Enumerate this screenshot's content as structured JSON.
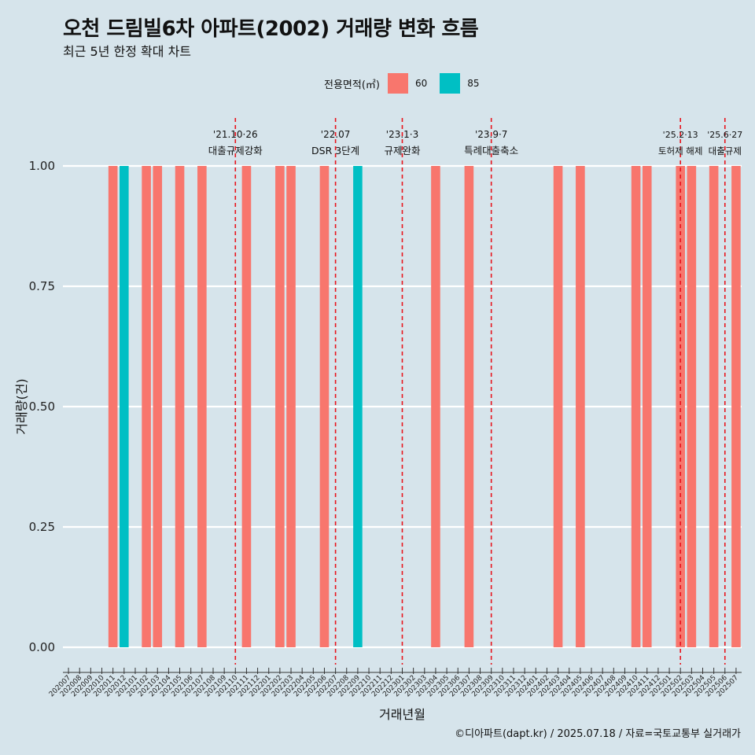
{
  "title": "오천 드림빌6차 아파트(2002) 거래량 변화 흐름",
  "subtitle": "최근 5년 한정 확대 차트",
  "legend": {
    "title": "전용면적(㎡)",
    "items": [
      {
        "label": "60",
        "color": "#f8766d"
      },
      {
        "label": "85",
        "color": "#00bfc4"
      }
    ]
  },
  "caption": "©디아파트(dapt.kr) / 2025.07.18 / 자료=국토교통부 실거래가",
  "chart_data": {
    "type": "bar",
    "xlabel": "거래년월",
    "ylabel": "거래량(건)",
    "ylim": [
      0,
      1
    ],
    "yticks": [
      "0.00",
      "0.25",
      "0.50",
      "0.75",
      "1.00"
    ],
    "categories": [
      "202007",
      "202008",
      "202009",
      "202010",
      "202011",
      "202012",
      "202101",
      "202102",
      "202103",
      "202104",
      "202105",
      "202106",
      "202107",
      "202108",
      "202109",
      "202110",
      "202111",
      "202112",
      "202201",
      "202202",
      "202203",
      "202204",
      "202205",
      "202206",
      "202207",
      "202208",
      "202209",
      "202210",
      "202211",
      "202212",
      "202301",
      "202302",
      "202303",
      "202304",
      "202305",
      "202306",
      "202307",
      "202308",
      "202309",
      "202310",
      "202311",
      "202312",
      "202401",
      "202402",
      "202403",
      "202404",
      "202405",
      "202406",
      "202407",
      "202408",
      "202409",
      "202410",
      "202411",
      "202412",
      "202501",
      "202502",
      "202503",
      "202504",
      "202505",
      "202506",
      "202507"
    ],
    "series": [
      {
        "name": "60",
        "color": "#f8766d",
        "values": [
          {
            "month": "202011",
            "value": 1
          },
          {
            "month": "202102",
            "value": 1
          },
          {
            "month": "202103",
            "value": 1
          },
          {
            "month": "202105",
            "value": 1
          },
          {
            "month": "202107",
            "value": 1
          },
          {
            "month": "202111",
            "value": 1
          },
          {
            "month": "202202",
            "value": 1
          },
          {
            "month": "202203",
            "value": 1
          },
          {
            "month": "202206",
            "value": 1
          },
          {
            "month": "202304",
            "value": 1
          },
          {
            "month": "202307",
            "value": 1
          },
          {
            "month": "202403",
            "value": 1
          },
          {
            "month": "202405",
            "value": 1
          },
          {
            "month": "202410",
            "value": 1
          },
          {
            "month": "202411",
            "value": 1
          },
          {
            "month": "202502",
            "value": 1
          },
          {
            "month": "202503",
            "value": 1
          },
          {
            "month": "202505",
            "value": 1
          },
          {
            "month": "202507",
            "value": 1
          }
        ]
      },
      {
        "name": "85",
        "color": "#00bfc4",
        "values": [
          {
            "month": "202012",
            "value": 1
          },
          {
            "month": "202209",
            "value": 1
          }
        ]
      }
    ],
    "events": [
      {
        "month": "202110",
        "date": "'21.10·26",
        "label": "대출규제강화"
      },
      {
        "month": "202207",
        "date": "'22.07",
        "label": "DSR 3단계"
      },
      {
        "month": "202301",
        "date": "'23.1·3",
        "label": "규제완화"
      },
      {
        "month": "202309",
        "date": "'23.9·7",
        "label": "특례대출축소"
      },
      {
        "month": "202502",
        "date": "'25.2·13",
        "label": "토허제 해제"
      },
      {
        "month": "202506",
        "date": "'25.6·27",
        "label": "대출규제"
      }
    ]
  }
}
